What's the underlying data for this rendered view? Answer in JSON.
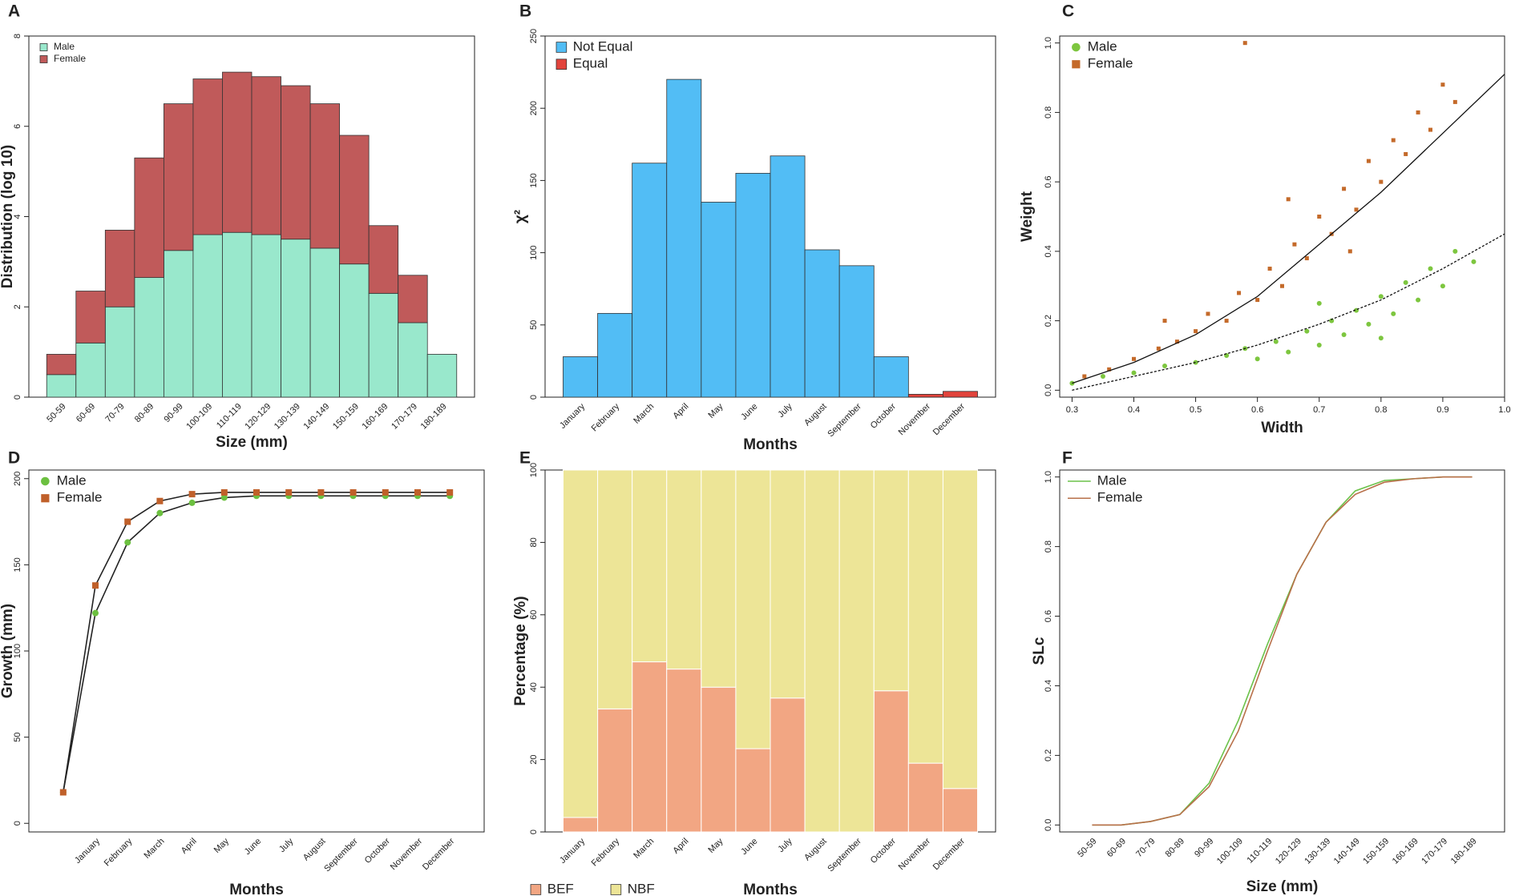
{
  "chart_data": [
    {
      "type": "bar",
      "stacked": true,
      "label": "A",
      "xlabel": "Size (mm)",
      "ylabel": "Distribution (log 10)",
      "categories": [
        "50-59",
        "60-69",
        "70-79",
        "80-89",
        "90-99",
        "100-109",
        "110-119",
        "120-129",
        "130-139",
        "140-149",
        "150-159",
        "160-169",
        "170-179",
        "180-189"
      ],
      "series": [
        {
          "name": "Male",
          "color": "#99e8cc",
          "values": [
            0.5,
            1.2,
            2.0,
            2.65,
            3.25,
            3.6,
            3.65,
            3.6,
            3.5,
            3.3,
            2.95,
            2.3,
            1.65,
            0.95
          ]
        },
        {
          "name": "Female",
          "color": "#c05a5a",
          "values": [
            0.45,
            1.15,
            1.7,
            2.65,
            3.25,
            3.45,
            3.55,
            3.5,
            3.4,
            3.2,
            2.85,
            1.5,
            1.05,
            0
          ]
        }
      ],
      "ylim": [
        0,
        8
      ],
      "yticks": [
        0,
        2,
        4,
        6,
        8
      ],
      "legend": "upper left"
    },
    {
      "type": "bar",
      "stacked": true,
      "label": "B",
      "xlabel": "Months",
      "ylabel": "χ²",
      "categories": [
        "January",
        "February",
        "March",
        "April",
        "May",
        "June",
        "July",
        "August",
        "September",
        "October",
        "November",
        "December"
      ],
      "series": [
        {
          "name": "Not Equal",
          "color": "#52bdf5",
          "values": [
            28,
            58,
            162,
            220,
            135,
            155,
            167,
            102,
            91,
            28,
            null,
            null
          ]
        },
        {
          "name": "Equal",
          "color": "#e2443c",
          "values": [
            null,
            null,
            null,
            null,
            null,
            null,
            null,
            null,
            null,
            null,
            2,
            4
          ]
        }
      ],
      "ylim": [
        0,
        250
      ],
      "yticks": [
        0,
        50,
        100,
        150,
        200,
        250
      ],
      "legend": "upper left"
    },
    {
      "type": "scatter",
      "label": "C",
      "xlabel": "Width",
      "ylabel": "Weight",
      "series": [
        {
          "name": "Male",
          "color": "#7dc63f",
          "marker": "circle",
          "x": [
            0.3,
            0.35,
            0.4,
            0.45,
            0.5,
            0.55,
            0.58,
            0.6,
            0.63,
            0.65,
            0.68,
            0.7,
            0.72,
            0.74,
            0.76,
            0.78,
            0.8,
            0.82,
            0.84,
            0.86,
            0.88,
            0.9,
            0.92,
            0.95,
            0.7,
            0.8
          ],
          "values": [
            0.02,
            0.04,
            0.05,
            0.07,
            0.08,
            0.1,
            0.12,
            0.09,
            0.14,
            0.11,
            0.17,
            0.13,
            0.2,
            0.16,
            0.23,
            0.19,
            0.27,
            0.22,
            0.31,
            0.26,
            0.35,
            0.3,
            0.4,
            0.37,
            0.25,
            0.15
          ],
          "fit": {
            "x": [
              0.3,
              0.4,
              0.5,
              0.6,
              0.7,
              0.8,
              0.9,
              1.0
            ],
            "values": [
              0.0,
              0.04,
              0.08,
              0.13,
              0.19,
              0.26,
              0.35,
              0.45
            ]
          }
        },
        {
          "name": "Female",
          "color": "#c46a2a",
          "marker": "square",
          "x": [
            0.32,
            0.36,
            0.4,
            0.44,
            0.47,
            0.5,
            0.52,
            0.55,
            0.57,
            0.6,
            0.62,
            0.64,
            0.66,
            0.68,
            0.7,
            0.72,
            0.74,
            0.76,
            0.78,
            0.8,
            0.82,
            0.84,
            0.86,
            0.88,
            0.9,
            0.92,
            0.58,
            0.45,
            0.65,
            0.75
          ],
          "values": [
            0.04,
            0.06,
            0.09,
            0.12,
            0.14,
            0.17,
            0.22,
            0.2,
            0.28,
            0.26,
            0.35,
            0.3,
            0.42,
            0.38,
            0.5,
            0.45,
            0.58,
            0.52,
            0.66,
            0.6,
            0.72,
            0.68,
            0.8,
            0.75,
            0.88,
            0.83,
            1.0,
            0.2,
            0.55,
            0.4
          ],
          "fit": {
            "x": [
              0.3,
              0.4,
              0.5,
              0.6,
              0.7,
              0.8,
              0.9,
              1.0
            ],
            "values": [
              0.02,
              0.08,
              0.16,
              0.27,
              0.42,
              0.57,
              0.74,
              0.91
            ]
          }
        }
      ],
      "xlim": [
        0.28,
        1.0
      ],
      "xticks": [
        0.3,
        0.4,
        0.5,
        0.6,
        0.7,
        0.8,
        0.9,
        {
          "value": 1,
          "label": "1.0"
        }
      ],
      "ylim": [
        -0.02,
        1.02
      ],
      "yticks": [
        {
          "value": 0,
          "label": "0.0"
        },
        0.2,
        0.4,
        0.6,
        0.8,
        {
          "value": 1,
          "label": "1.0"
        }
      ],
      "legend": "upper left"
    },
    {
      "type": "line",
      "label": "D",
      "xlabel": "Months",
      "ylabel": "Growth (mm)",
      "categories": [
        null,
        "January",
        "February",
        "March",
        "April",
        "May",
        "June",
        "July",
        "August",
        "September",
        "October",
        "November",
        "December"
      ],
      "series": [
        {
          "name": "Male",
          "color": "#6cc040",
          "marker": "circle",
          "line_color": "#222",
          "values": [
            18,
            122,
            163,
            180,
            186,
            189,
            190,
            190,
            190,
            190,
            190,
            190,
            190
          ]
        },
        {
          "name": "Female",
          "color": "#c0602a",
          "marker": "square",
          "line_color": "#222",
          "values": [
            18,
            138,
            175,
            187,
            191,
            192,
            192,
            192,
            192,
            192,
            192,
            192,
            192
          ]
        }
      ],
      "ylim": [
        -5,
        205
      ],
      "yticks": [
        0,
        50,
        100,
        150,
        200
      ],
      "legend": "upper left"
    },
    {
      "type": "bar",
      "stacked": true,
      "label": "E",
      "xlabel": "Months",
      "ylabel": "Percentage (%)",
      "categories": [
        "January",
        "February",
        "March",
        "April",
        "May",
        "June",
        "July",
        "August",
        "September",
        "October",
        "November",
        "December"
      ],
      "series": [
        {
          "name": "BEF",
          "color": "#f2a683",
          "values": [
            4,
            34,
            47,
            45,
            40,
            23,
            37,
            0,
            0,
            39,
            19,
            12
          ]
        },
        {
          "name": "NBF",
          "color": "#ede597",
          "values": [
            96,
            66,
            53,
            55,
            60,
            77,
            63,
            100,
            100,
            61,
            81,
            88
          ]
        }
      ],
      "ylim": [
        0,
        100
      ],
      "yticks": [
        0,
        20,
        40,
        60,
        80,
        100
      ],
      "legend": "lower left outside"
    },
    {
      "type": "line",
      "label": "F",
      "xlabel": "Size (mm)",
      "ylabel": "SLc",
      "categories": [
        "50-59",
        "60-69",
        "70-79",
        "80-89",
        "90-99",
        "100-109",
        "110-119",
        "120-129",
        "130-139",
        "140-149",
        "150-159",
        "160-169",
        "170-179",
        "180-189"
      ],
      "series": [
        {
          "name": "Male",
          "color": "#6cc24a",
          "values": [
            0,
            0,
            0.01,
            0.03,
            0.12,
            0.3,
            0.52,
            0.72,
            0.87,
            0.96,
            0.99,
            0.995,
            1,
            1
          ]
        },
        {
          "name": "Female",
          "color": "#b8704a",
          "values": [
            0,
            0,
            0.01,
            0.03,
            0.11,
            0.27,
            0.5,
            0.72,
            0.87,
            0.95,
            0.985,
            0.995,
            1,
            1
          ]
        }
      ],
      "ylim": [
        -0.02,
        1.02
      ],
      "yticks": [
        {
          "value": 0,
          "label": "0.0"
        },
        0.2,
        0.4,
        0.6,
        0.8,
        {
          "value": 1,
          "label": "1.0"
        }
      ],
      "legend": "upper left"
    }
  ]
}
